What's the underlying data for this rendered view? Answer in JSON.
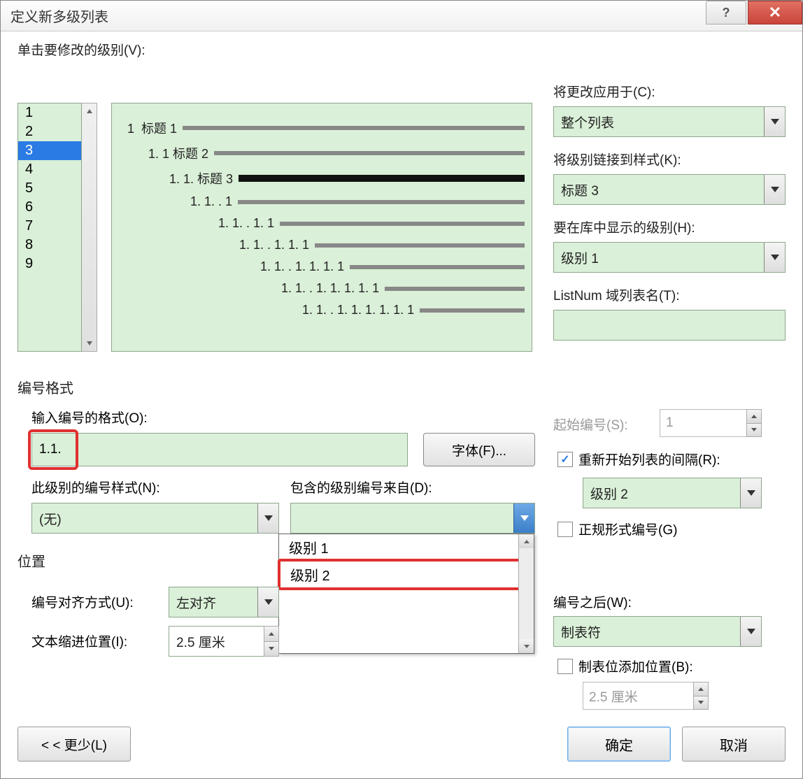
{
  "title": "定义新多级列表",
  "titlebar": {
    "help": "?",
    "close": "✕"
  },
  "labels": {
    "click_level": "单击要修改的级别(V):",
    "apply_to": "将更改应用于(C):",
    "link_style": "将级别链接到样式(K):",
    "show_in_gallery": "要在库中显示的级别(H):",
    "listnum": "ListNum 域列表名(T):",
    "numfmt_section": "编号格式",
    "enter_format": "输入编号的格式(O):",
    "font_btn": "字体(F)...",
    "number_style": "此级别的编号样式(N):",
    "include_from": "包含的级别编号来自(D):",
    "position_section": "位置",
    "align": "编号对齐方式(U):",
    "text_indent": "文本缩进位置(I):",
    "start_at": "起始编号(S):",
    "restart": "重新开始列表的间隔(R):",
    "legal": "正规形式编号(G)",
    "follow": "编号之后(W):",
    "tab_add": "制表位添加位置(B):",
    "less": "< < 更少(L)",
    "ok": "确定",
    "cancel": "取消"
  },
  "level_list": {
    "items": [
      "1",
      "2",
      "3",
      "4",
      "5",
      "6",
      "7",
      "8",
      "9"
    ],
    "selected_index": 2
  },
  "preview": {
    "rows": [
      {
        "indent": 0,
        "text": "1  标题 1",
        "bold": false
      },
      {
        "indent": 30,
        "text": "1. 1 标题 2",
        "bold": false
      },
      {
        "indent": 60,
        "text": "1. 1. 标题 3",
        "bold": true
      },
      {
        "indent": 90,
        "text": "1. 1. . 1",
        "bold": false
      },
      {
        "indent": 130,
        "text": "1. 1. . 1. 1",
        "bold": false
      },
      {
        "indent": 160,
        "text": "1. 1. . 1. 1. 1",
        "bold": false
      },
      {
        "indent": 190,
        "text": "1. 1. . 1. 1. 1. 1",
        "bold": false
      },
      {
        "indent": 220,
        "text": "1. 1. . 1. 1. 1. 1. 1",
        "bold": false
      },
      {
        "indent": 250,
        "text": "1. 1. . 1. 1. 1. 1. 1. 1",
        "bold": false
      }
    ]
  },
  "right": {
    "apply_to_value": "整个列表",
    "link_style_value": "标题 3",
    "gallery_value": "级别 1",
    "listnum_value": ""
  },
  "numfmt": {
    "value": "1.1."
  },
  "number_style": "(无)",
  "include_dd": {
    "options": [
      "级别 1",
      "级别 2"
    ],
    "highlight_index": 1
  },
  "align_value": "左对齐",
  "indent_value": "2.5 厘米",
  "start_value": "1",
  "restart_value": "级别 2",
  "follow_value": "制表符",
  "tab_value": "2.5 厘米",
  "colors": {
    "field_bg": "#daf0d8",
    "highlight_red": "#e03030",
    "selection_blue": "#2a7be4"
  }
}
